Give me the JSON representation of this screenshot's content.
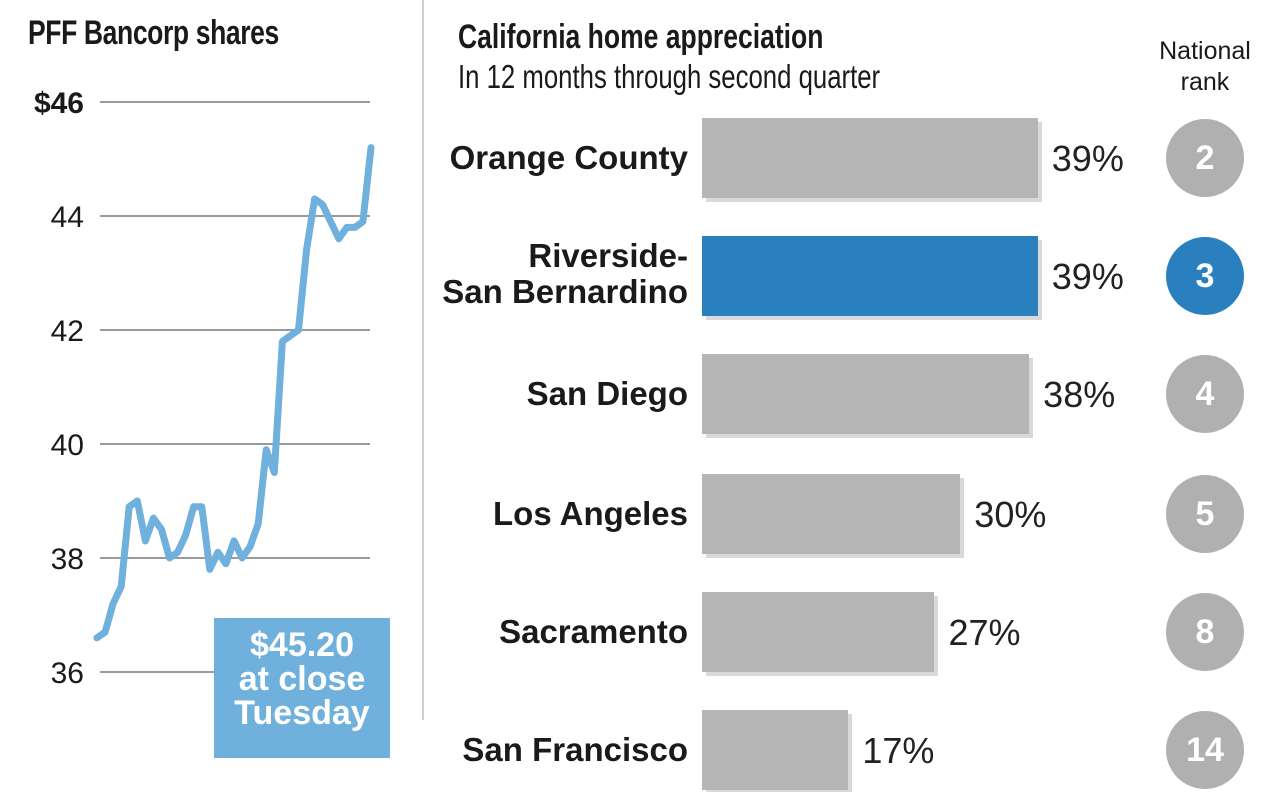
{
  "stock_panel": {
    "title": "PFF Bancorp shares",
    "callout": {
      "line1": "$45.20",
      "line2": "at close",
      "line3": "Tuesday"
    }
  },
  "appreciation_panel": {
    "title": "California home appreciation",
    "subtitle": "In 12 months through second quarter",
    "rank_header": {
      "line1": "National",
      "line2": "rank"
    }
  },
  "colors": {
    "line": "#6fb0dc",
    "highlight": "#2a7fbf",
    "bar": "#b5b5b5",
    "grid": "#9a9a9a"
  },
  "chart_data": [
    {
      "type": "line",
      "title": "PFF Bancorp shares",
      "yticks": [
        "$46",
        "44",
        "42",
        "40",
        "38",
        "36"
      ],
      "ylim": [
        35.5,
        46.5
      ],
      "grid": true,
      "series": [
        {
          "values": [
            36.6,
            36.7,
            37.2,
            37.5,
            38.9,
            39.0,
            38.3,
            38.7,
            38.5,
            38.0,
            38.1,
            38.4,
            38.9,
            38.9,
            37.8,
            38.1,
            37.9,
            38.3,
            38.0,
            38.2,
            38.6,
            39.9,
            39.5,
            41.8,
            41.9,
            42.0,
            43.4,
            44.3,
            44.2,
            43.9,
            43.6,
            43.8,
            43.8,
            43.9,
            45.2
          ]
        }
      ]
    },
    {
      "type": "bar",
      "title": "California home appreciation",
      "subtitle": "In 12 months through second quarter",
      "categories": [
        "Orange County",
        "Riverside-San Bernardino",
        "San Diego",
        "Los Angeles",
        "Sacramento",
        "San Francisco"
      ],
      "category_lines": [
        [
          "Orange County"
        ],
        [
          "Riverside-",
          "San Bernardino"
        ],
        [
          "San Diego"
        ],
        [
          "Los Angeles"
        ],
        [
          "Sacramento"
        ],
        [
          "San Francisco"
        ]
      ],
      "values": [
        39,
        39,
        38,
        30,
        27,
        17
      ],
      "value_labels": [
        "39%",
        "39%",
        "38%",
        "30%",
        "27%",
        "17%"
      ],
      "national_rank": [
        "2",
        "3",
        "4",
        "5",
        "8",
        "14"
      ],
      "highlight_index": 1,
      "xlim": [
        0,
        100
      ]
    }
  ]
}
